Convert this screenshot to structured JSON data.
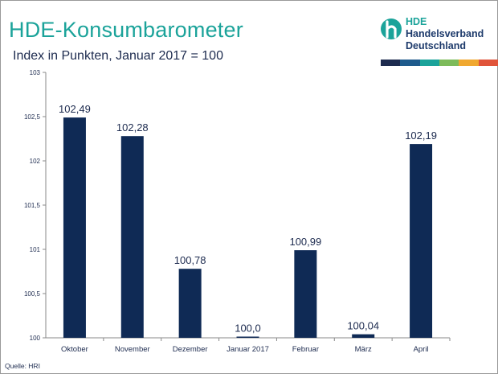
{
  "header": {
    "title": "HDE-Konsumbarometer",
    "subtitle": "Index in Punkten, Januar 2017 = 100"
  },
  "logo": {
    "line1": "HDE",
    "line2": "Handelsverband",
    "line3": "Deutschland",
    "stripe_colors": [
      "#1d2b4f",
      "#1e5a8c",
      "#1ba39a",
      "#7dbb5a",
      "#f0a830",
      "#e0543a"
    ]
  },
  "source": "Quelle:  HRI",
  "colors": {
    "bar": "#0f2a55",
    "text": "#1d2b4f",
    "title": "#1ba39a"
  },
  "chart_data": {
    "type": "bar",
    "title": "HDE-Konsumbarometer",
    "subtitle": "Index in Punkten, Januar 2017 = 100",
    "categories": [
      "Oktober",
      "November",
      "Dezember",
      "Januar 2017",
      "Februar",
      "März",
      "April"
    ],
    "values": [
      102.49,
      102.28,
      100.78,
      100.0,
      100.99,
      100.04,
      102.19
    ],
    "data_labels": [
      "102,49",
      "102,28",
      "100,78",
      "100,0",
      "100,99",
      "100,04",
      "102,19"
    ],
    "ylim": [
      100,
      103
    ],
    "yticks": [
      100,
      100.5,
      101,
      101.5,
      102,
      102.5,
      103
    ],
    "ytick_labels": [
      "100",
      "100,5",
      "101",
      "101,5",
      "102",
      "102,5",
      "103"
    ],
    "grid": false,
    "legend": "none"
  }
}
